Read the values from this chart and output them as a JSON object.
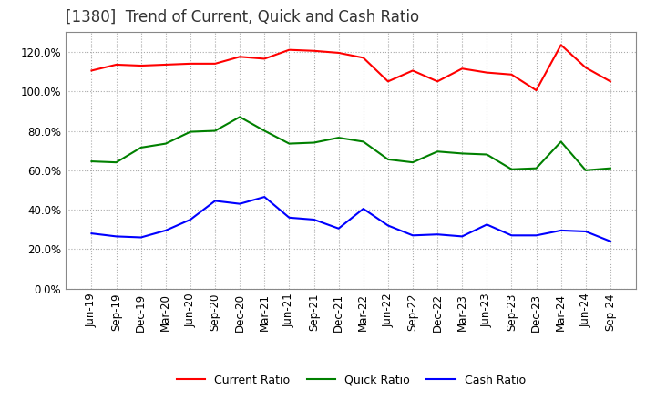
{
  "title": "[1380]  Trend of Current, Quick and Cash Ratio",
  "x_labels": [
    "Jun-19",
    "Sep-19",
    "Dec-19",
    "Mar-20",
    "Jun-20",
    "Sep-20",
    "Dec-20",
    "Mar-21",
    "Jun-21",
    "Sep-21",
    "Dec-21",
    "Mar-22",
    "Jun-22",
    "Sep-22",
    "Dec-22",
    "Mar-23",
    "Jun-23",
    "Sep-23",
    "Dec-23",
    "Mar-24",
    "Jun-24",
    "Sep-24"
  ],
  "current_ratio": [
    110.5,
    113.5,
    113.0,
    113.5,
    114.0,
    114.0,
    117.5,
    116.5,
    121.0,
    120.5,
    119.5,
    117.0,
    105.0,
    110.5,
    105.0,
    111.5,
    109.5,
    108.5,
    100.5,
    123.5,
    112.0,
    105.0
  ],
  "quick_ratio": [
    64.5,
    64.0,
    71.5,
    73.5,
    79.5,
    80.0,
    87.0,
    80.0,
    73.5,
    74.0,
    76.5,
    74.5,
    65.5,
    64.0,
    69.5,
    68.5,
    68.0,
    60.5,
    61.0,
    74.5,
    60.0,
    61.0
  ],
  "cash_ratio": [
    28.0,
    26.5,
    26.0,
    29.5,
    35.0,
    44.5,
    43.0,
    46.5,
    36.0,
    35.0,
    30.5,
    40.5,
    32.0,
    27.0,
    27.5,
    26.5,
    32.5,
    27.0,
    27.0,
    29.5,
    29.0,
    24.0
  ],
  "current_color": "#ff0000",
  "quick_color": "#008000",
  "cash_color": "#0000ff",
  "ylim": [
    0.0,
    130.0
  ],
  "yticks": [
    0.0,
    20.0,
    40.0,
    60.0,
    80.0,
    100.0,
    120.0
  ],
  "legend_labels": [
    "Current Ratio",
    "Quick Ratio",
    "Cash Ratio"
  ],
  "title_fontsize": 12,
  "tick_fontsize": 8.5,
  "legend_fontsize": 9,
  "bg_color": "#ffffff",
  "grid_color": "#aaaaaa"
}
